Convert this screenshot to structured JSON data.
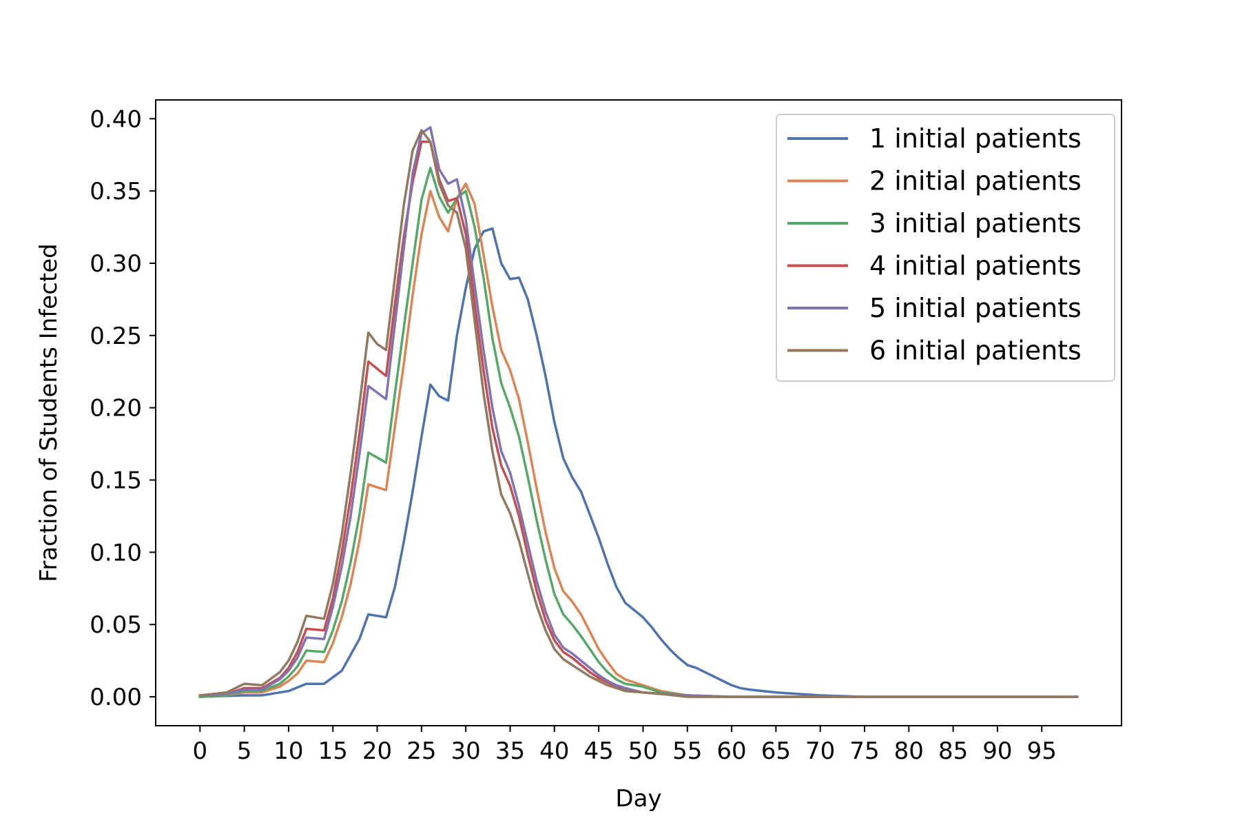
{
  "chart_data": {
    "type": "line",
    "xlabel": "Day",
    "ylabel": "Fraction of Students Infected",
    "xlim": [
      -5,
      104
    ],
    "ylim": [
      -0.02,
      0.413
    ],
    "x_ticks": [
      0,
      5,
      10,
      15,
      20,
      25,
      30,
      35,
      40,
      45,
      50,
      55,
      60,
      65,
      70,
      75,
      80,
      85,
      90,
      95
    ],
    "x_tick_labels": [
      "0",
      "5",
      "10",
      "15",
      "20",
      "25",
      "30",
      "35",
      "40",
      "45",
      "50",
      "55",
      "60",
      "65",
      "70",
      "75",
      "80",
      "85",
      "90",
      "95"
    ],
    "y_ticks": [
      0.0,
      0.05,
      0.1,
      0.15,
      0.2,
      0.25,
      0.3,
      0.35,
      0.4
    ],
    "y_tick_labels": [
      "0.00",
      "0.05",
      "0.10",
      "0.15",
      "0.20",
      "0.25",
      "0.30",
      "0.35",
      "0.40"
    ],
    "grid": false,
    "legend_position": "top-right",
    "series": [
      {
        "name": "1 initial patients",
        "color": "#4c72b0",
        "x": [
          0,
          5,
          7,
          10,
          12,
          14,
          16,
          18,
          19,
          21,
          22,
          23,
          24,
          25,
          26,
          27,
          28,
          29,
          30,
          31,
          32,
          33,
          34,
          35,
          36,
          37,
          38,
          39,
          40,
          41,
          42,
          43,
          44,
          45,
          46,
          47,
          48,
          50,
          51,
          52,
          53,
          54,
          55,
          56,
          57,
          58,
          59,
          60,
          61,
          62,
          65,
          70,
          75,
          80,
          85,
          90,
          95,
          99
        ],
        "y": [
          0.0,
          0.001,
          0.001,
          0.004,
          0.009,
          0.009,
          0.018,
          0.04,
          0.057,
          0.055,
          0.076,
          0.107,
          0.142,
          0.18,
          0.216,
          0.208,
          0.205,
          0.25,
          0.283,
          0.31,
          0.322,
          0.324,
          0.3,
          0.289,
          0.29,
          0.275,
          0.25,
          0.222,
          0.19,
          0.165,
          0.152,
          0.142,
          0.126,
          0.11,
          0.092,
          0.076,
          0.065,
          0.055,
          0.048,
          0.04,
          0.033,
          0.027,
          0.022,
          0.02,
          0.017,
          0.014,
          0.011,
          0.008,
          0.006,
          0.005,
          0.003,
          0.001,
          0.0,
          0.0,
          0.0,
          0.0,
          0.0,
          0.0
        ]
      },
      {
        "name": "2 initial patients",
        "color": "#dd8452",
        "x": [
          0,
          3,
          5,
          7,
          9,
          10,
          11,
          12,
          14,
          15,
          16,
          17,
          18,
          19,
          21,
          22,
          23,
          24,
          25,
          26,
          27,
          28,
          29,
          30,
          31,
          32,
          33,
          34,
          35,
          36,
          37,
          38,
          39,
          40,
          41,
          42,
          43,
          44,
          45,
          46,
          47,
          48,
          50,
          52,
          55,
          60,
          65,
          70,
          80,
          99
        ],
        "y": [
          0.0,
          0.001,
          0.003,
          0.003,
          0.007,
          0.011,
          0.016,
          0.025,
          0.024,
          0.037,
          0.055,
          0.078,
          0.108,
          0.147,
          0.143,
          0.187,
          0.23,
          0.278,
          0.32,
          0.35,
          0.332,
          0.322,
          0.345,
          0.355,
          0.341,
          0.306,
          0.27,
          0.24,
          0.226,
          0.206,
          0.176,
          0.144,
          0.114,
          0.089,
          0.073,
          0.066,
          0.057,
          0.045,
          0.033,
          0.024,
          0.016,
          0.012,
          0.008,
          0.004,
          0.001,
          0.0,
          0.0,
          0.0,
          0.0,
          0.0
        ]
      },
      {
        "name": "3 initial patients",
        "color": "#55a868",
        "x": [
          0,
          3,
          5,
          7,
          9,
          10,
          11,
          12,
          14,
          15,
          16,
          17,
          18,
          19,
          21,
          22,
          23,
          24,
          25,
          26,
          27,
          28,
          29,
          30,
          31,
          32,
          33,
          34,
          35,
          36,
          37,
          38,
          39,
          40,
          41,
          42,
          43,
          44,
          45,
          46,
          47,
          48,
          50,
          52,
          55,
          60,
          65,
          70,
          80,
          99
        ],
        "y": [
          0.0,
          0.001,
          0.004,
          0.004,
          0.009,
          0.014,
          0.021,
          0.032,
          0.031,
          0.046,
          0.066,
          0.093,
          0.126,
          0.169,
          0.162,
          0.21,
          0.255,
          0.3,
          0.344,
          0.366,
          0.346,
          0.335,
          0.345,
          0.35,
          0.325,
          0.29,
          0.248,
          0.217,
          0.2,
          0.18,
          0.152,
          0.122,
          0.095,
          0.071,
          0.057,
          0.05,
          0.042,
          0.033,
          0.024,
          0.017,
          0.012,
          0.009,
          0.007,
          0.003,
          0.001,
          0.0,
          0.0,
          0.0,
          0.0,
          0.0
        ]
      },
      {
        "name": "4 initial patients",
        "color": "#c44e52",
        "x": [
          0,
          3,
          5,
          7,
          9,
          10,
          11,
          12,
          14,
          15,
          16,
          17,
          18,
          19,
          21,
          22,
          23,
          24,
          25,
          26,
          27,
          28,
          29,
          30,
          31,
          32,
          33,
          34,
          35,
          36,
          37,
          38,
          39,
          40,
          41,
          42,
          43,
          44,
          45,
          46,
          47,
          48,
          50,
          52,
          55,
          60,
          65,
          70,
          80,
          99
        ],
        "y": [
          0.001,
          0.002,
          0.006,
          0.006,
          0.013,
          0.02,
          0.031,
          0.047,
          0.046,
          0.068,
          0.1,
          0.138,
          0.182,
          0.232,
          0.222,
          0.272,
          0.318,
          0.356,
          0.384,
          0.384,
          0.358,
          0.343,
          0.345,
          0.32,
          0.272,
          0.226,
          0.186,
          0.16,
          0.146,
          0.125,
          0.098,
          0.073,
          0.053,
          0.039,
          0.031,
          0.027,
          0.022,
          0.017,
          0.013,
          0.01,
          0.007,
          0.005,
          0.003,
          0.002,
          0.001,
          0.0,
          0.0,
          0.0,
          0.0,
          0.0
        ]
      },
      {
        "name": "5 initial patients",
        "color": "#8172b2",
        "x": [
          0,
          3,
          5,
          7,
          9,
          10,
          11,
          12,
          14,
          15,
          16,
          17,
          18,
          19,
          21,
          22,
          23,
          24,
          25,
          26,
          27,
          28,
          29,
          30,
          31,
          32,
          33,
          34,
          35,
          36,
          37,
          38,
          39,
          40,
          41,
          42,
          43,
          44,
          45,
          46,
          47,
          48,
          50,
          52,
          55,
          60,
          65,
          70,
          80,
          99
        ],
        "y": [
          0.001,
          0.002,
          0.005,
          0.005,
          0.012,
          0.018,
          0.027,
          0.041,
          0.04,
          0.062,
          0.09,
          0.125,
          0.168,
          0.215,
          0.206,
          0.258,
          0.31,
          0.362,
          0.39,
          0.394,
          0.365,
          0.355,
          0.358,
          0.33,
          0.285,
          0.24,
          0.2,
          0.17,
          0.155,
          0.132,
          0.106,
          0.08,
          0.059,
          0.043,
          0.034,
          0.03,
          0.025,
          0.02,
          0.015,
          0.011,
          0.008,
          0.006,
          0.003,
          0.002,
          0.001,
          0.0,
          0.0,
          0.0,
          0.0,
          0.0
        ]
      },
      {
        "name": "6 initial patients",
        "color": "#937860",
        "x": [
          0,
          3,
          5,
          7,
          9,
          10,
          11,
          12,
          14,
          15,
          16,
          17,
          18,
          19,
          20,
          21,
          22,
          23,
          24,
          25,
          26,
          27,
          28,
          29,
          30,
          31,
          32,
          33,
          34,
          35,
          36,
          37,
          38,
          39,
          40,
          41,
          42,
          43,
          44,
          45,
          46,
          47,
          48,
          50,
          52,
          55,
          60,
          65,
          70,
          80,
          99
        ],
        "y": [
          0.001,
          0.003,
          0.009,
          0.008,
          0.017,
          0.025,
          0.038,
          0.056,
          0.054,
          0.078,
          0.112,
          0.155,
          0.202,
          0.252,
          0.244,
          0.24,
          0.29,
          0.34,
          0.378,
          0.392,
          0.384,
          0.355,
          0.34,
          0.335,
          0.31,
          0.26,
          0.21,
          0.17,
          0.14,
          0.127,
          0.108,
          0.085,
          0.063,
          0.046,
          0.033,
          0.026,
          0.022,
          0.018,
          0.014,
          0.011,
          0.008,
          0.006,
          0.004,
          0.003,
          0.002,
          0.0,
          0.0,
          0.0,
          0.0,
          0.0,
          0.0
        ]
      }
    ]
  }
}
